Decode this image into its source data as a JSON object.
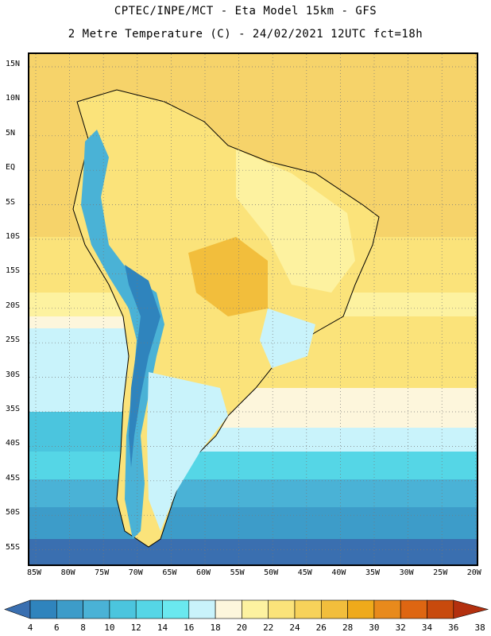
{
  "header": {
    "line1": "CPTEC/INPE/MCT -  Eta Model 15km - GFS",
    "line2": "2 Metre Temperature (C) - 24/02/2021 12UTC fct=18h"
  },
  "axes": {
    "lat_labels": [
      "15N",
      "10N",
      "5N",
      "EQ",
      "5S",
      "10S",
      "15S",
      "20S",
      "25S",
      "30S",
      "35S",
      "40S",
      "45S",
      "50S",
      "55S"
    ],
    "lon_labels": [
      "85W",
      "80W",
      "75W",
      "70W",
      "65W",
      "60W",
      "55W",
      "50W",
      "45W",
      "40W",
      "35W",
      "30W",
      "25W",
      "20W"
    ]
  },
  "colorbar": {
    "labels": [
      "4",
      "6",
      "8",
      "10",
      "12",
      "14",
      "16",
      "18",
      "20",
      "22",
      "24",
      "26",
      "28",
      "30",
      "32",
      "34",
      "36",
      "38"
    ],
    "colors": [
      "#3a6fb0",
      "#2f84bd",
      "#3d9cc9",
      "#4ab2d6",
      "#4bc5de",
      "#55d6e6",
      "#6ae8ef",
      "#c9f3fb",
      "#fdf6dc",
      "#fdf2a0",
      "#fbe37a",
      "#f7d25a",
      "#f2be3c",
      "#efaa1b",
      "#e88a1c",
      "#de6612",
      "#c84a0d",
      "#b3300f"
    ]
  }
}
